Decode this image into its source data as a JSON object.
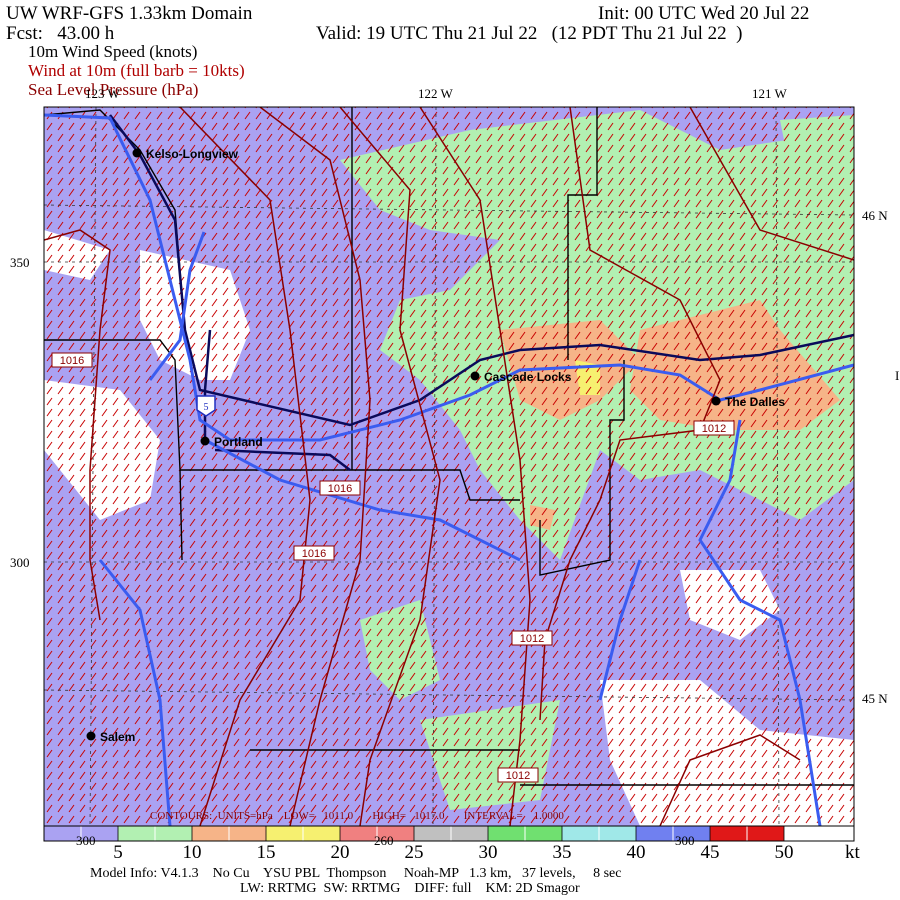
{
  "header": {
    "title": "UW WRF-GFS 1.33km Domain",
    "init": "Init: 00 UTC Wed 20 Jul 22",
    "fcst": "Fcst:   43.00 h",
    "valid": "Valid: 19 UTC Thu 21 Jul 22   (12 PDT Thu 21 Jul 22  )",
    "fields": [
      "10m Wind Speed (knots)",
      "Wind at 10m (full barb = 10kts)",
      "Sea Level Pressure (hPa)"
    ]
  },
  "map": {
    "lon_labels": [
      "123 W",
      "122 W",
      "121 W"
    ],
    "lat_labels": [
      "46 N",
      "45 N"
    ],
    "edge_label": "I",
    "grid_labels": [
      "350",
      "300",
      "300",
      "260",
      "300"
    ],
    "cities": [
      "Kelso-Longview",
      "Cascade Locks",
      "The Dalles",
      "Portland",
      "Salem"
    ],
    "shield": "5",
    "contour_labels": [
      "1016",
      "1016",
      "1016",
      "1012",
      "1012",
      "1012"
    ],
    "contour_info": "CONTOURS:  UNITS=hPa    LOW=   1011.0       HIGH=   1017.0       INTERVAL=    1.0000"
  },
  "colorbar": {
    "ticks": [
      5,
      10,
      15,
      20,
      25,
      30,
      35,
      40,
      45,
      50
    ],
    "unit": "kt",
    "colors": [
      "#aaa2f2",
      "#b2f0b2",
      "#f6b488",
      "#f6f070",
      "#f08080",
      "#c0c0c0",
      "#70e070",
      "#a0e8e8",
      "#7080f0",
      "#e01818"
    ]
  },
  "footer": {
    "model_info": "Model Info: V4.1.3    No Cu    YSU PBL  Thompson     Noah-MP   1.3 km,   37 levels,     8 sec",
    "physics": "LW: RRTMG  SW: RRTMG    DIFF: full    KM: 2D Smagor"
  }
}
